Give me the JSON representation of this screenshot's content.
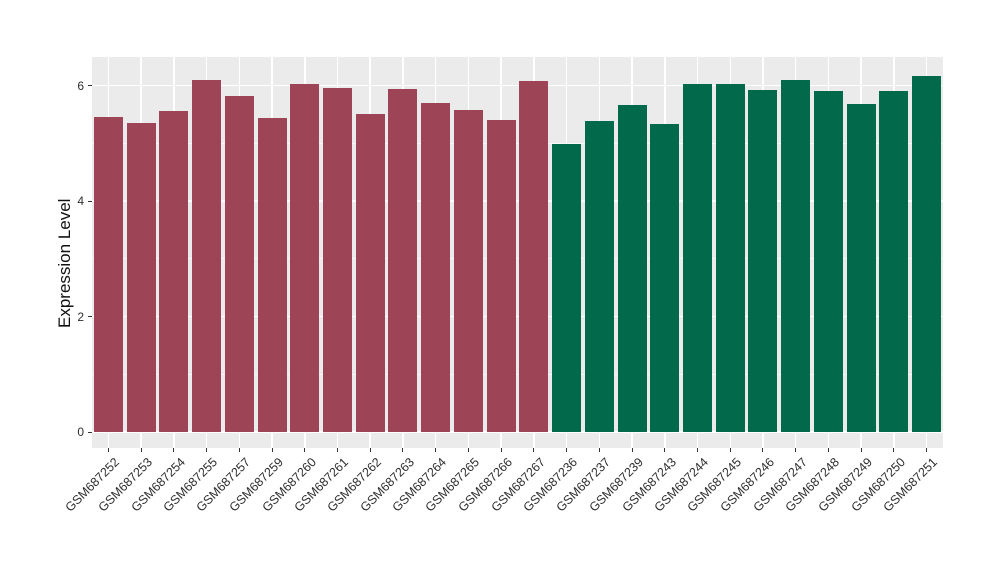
{
  "chart_data": {
    "type": "bar",
    "title": "",
    "xlabel": "",
    "ylabel": "Expression Level",
    "categories": [
      "GSM687252",
      "GSM687253",
      "GSM687254",
      "GSM687255",
      "GSM687257",
      "GSM687259",
      "GSM687260",
      "GSM687261",
      "GSM687262",
      "GSM687263",
      "GSM687264",
      "GSM687265",
      "GSM687266",
      "GSM687267",
      "GSM687236",
      "GSM687237",
      "GSM687239",
      "GSM687243",
      "GSM687244",
      "GSM687245",
      "GSM687246",
      "GSM687247",
      "GSM687248",
      "GSM687249",
      "GSM687250",
      "GSM687251"
    ],
    "values": [
      5.46,
      5.35,
      5.55,
      6.09,
      5.81,
      5.43,
      6.02,
      5.96,
      5.5,
      5.94,
      5.7,
      5.57,
      5.41,
      6.08,
      4.99,
      5.39,
      5.67,
      5.34,
      6.03,
      6.03,
      5.93,
      6.1,
      5.9,
      5.68,
      5.9,
      6.17
    ],
    "groups": [
      "maroon",
      "maroon",
      "maroon",
      "maroon",
      "maroon",
      "maroon",
      "maroon",
      "maroon",
      "maroon",
      "maroon",
      "maroon",
      "maroon",
      "maroon",
      "maroon",
      "green",
      "green",
      "green",
      "green",
      "green",
      "green",
      "green",
      "green",
      "green",
      "green",
      "green",
      "green"
    ],
    "group_colors": {
      "maroon": "#9D4457",
      "green": "#02694B"
    },
    "ylim": [
      0,
      6.49
    ],
    "yticks": [
      0,
      2,
      4,
      6
    ],
    "yticks_minor": [
      1,
      3,
      5
    ],
    "grid": "on",
    "legend": "none",
    "x_tick_rotation": 45
  },
  "style": {
    "figure_bg": "#FFFFFF",
    "panel_bg": "#EBEBEB",
    "grid_color": "#FFFFFF",
    "tick_mark_color": "#333333",
    "tick_label_color": "#2E2E2E",
    "axis_title_color": "#111111"
  }
}
